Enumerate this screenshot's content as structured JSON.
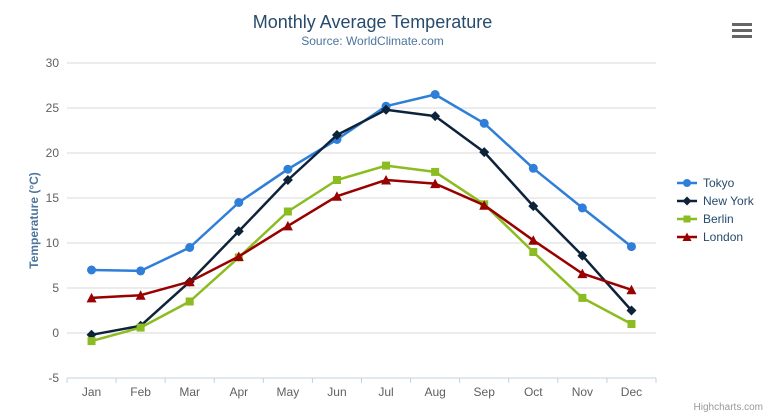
{
  "header": {
    "title": "Monthly Average Temperature",
    "subtitle": "Source: WorldClimate.com",
    "menu_icon": "hamburger-icon"
  },
  "credits": "Highcharts.com",
  "colors": {
    "title": "#274b6d",
    "subtitle": "#4d759e",
    "axis_labels": "#606060",
    "axis_line": "#c0d0e0",
    "gridline": "#d8d8d8",
    "legend_text": "#274b6d",
    "tokyo": "#2f7ed8",
    "new_york": "#0d233a",
    "berlin": "#8bbc21",
    "london": "#990000"
  },
  "chart_data": {
    "type": "line",
    "title": "Monthly Average Temperature",
    "subtitle": "Source: WorldClimate.com",
    "categories": [
      "Jan",
      "Feb",
      "Mar",
      "Apr",
      "May",
      "Jun",
      "Jul",
      "Aug",
      "Sep",
      "Oct",
      "Nov",
      "Dec"
    ],
    "xlabel": "",
    "ylabel": "Temperature (°C)",
    "ylim": [
      -5,
      30
    ],
    "yticks": [
      -5,
      0,
      5,
      10,
      15,
      20,
      25,
      30
    ],
    "grid": true,
    "legend_position": "right",
    "series": [
      {
        "name": "Tokyo",
        "color": "#2f7ed8",
        "marker": "circle",
        "values": [
          7.0,
          6.9,
          9.5,
          14.5,
          18.2,
          21.5,
          25.2,
          26.5,
          23.3,
          18.3,
          13.9,
          9.6
        ]
      },
      {
        "name": "New York",
        "color": "#0d233a",
        "marker": "diamond",
        "values": [
          -0.2,
          0.8,
          5.7,
          11.3,
          17.0,
          22.0,
          24.8,
          24.1,
          20.1,
          14.1,
          8.6,
          2.5
        ]
      },
      {
        "name": "Berlin",
        "color": "#8bbc21",
        "marker": "square",
        "values": [
          -0.9,
          0.6,
          3.5,
          8.4,
          13.5,
          17.0,
          18.6,
          17.9,
          14.3,
          9.0,
          3.9,
          1.0
        ]
      },
      {
        "name": "London",
        "color": "#990000",
        "marker": "triangle",
        "values": [
          3.9,
          4.2,
          5.7,
          8.5,
          11.9,
          15.2,
          17.0,
          16.6,
          14.2,
          10.3,
          6.6,
          4.8
        ]
      }
    ]
  }
}
